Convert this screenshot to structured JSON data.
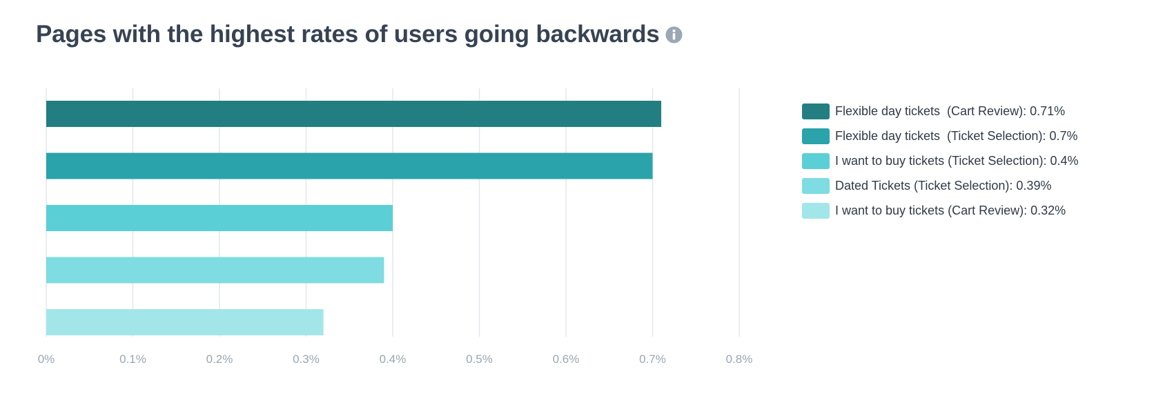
{
  "chart_data": {
    "type": "bar",
    "orientation": "horizontal",
    "title": "Pages with the highest rates of users going backwards",
    "xlabel": "",
    "ylabel": "",
    "xlim": [
      0,
      0.8
    ],
    "grid": true,
    "legend_position": "right",
    "x_ticks": [
      "0%",
      "0.1%",
      "0.2%",
      "0.3%",
      "0.4%",
      "0.5%",
      "0.6%",
      "0.7%",
      "0.8%"
    ],
    "x_tick_values": [
      0,
      0.1,
      0.2,
      0.3,
      0.4,
      0.5,
      0.6,
      0.7,
      0.8
    ],
    "categories": [
      "Flexible day tickets  (Cart Review)",
      "Flexible day tickets  (Ticket Selection)",
      "I want to buy tickets (Ticket Selection)",
      "Dated Tickets (Ticket Selection)",
      "I want to buy tickets (Cart Review)"
    ],
    "values": [
      0.71,
      0.7,
      0.4,
      0.39,
      0.32
    ],
    "unit": "%",
    "colors": [
      "#237e82",
      "#2aa3aa",
      "#5acfd6",
      "#7edce2",
      "#a3e6e9"
    ],
    "legend": [
      "Flexible day tickets  (Cart Review): 0.71%",
      "Flexible day tickets  (Ticket Selection): 0.7%",
      "I want to buy tickets (Ticket Selection): 0.4%",
      "Dated Tickets (Ticket Selection): 0.39%",
      "I want to buy tickets (Cart Review): 0.32%"
    ]
  },
  "icons": {
    "title_info": "info-icon"
  },
  "theme": {
    "grid_color": "#e4e7ea",
    "axis_label_color": "#9aa6b2",
    "info_icon_color": "#9ba7b4"
  }
}
